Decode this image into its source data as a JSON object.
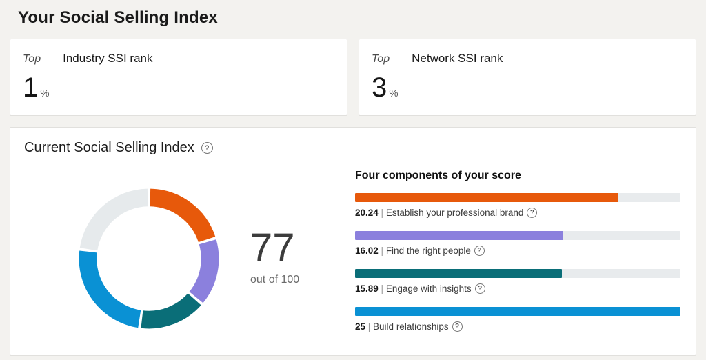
{
  "page": {
    "title": "Your Social Selling Index",
    "background": "#f3f2ef"
  },
  "icons": {
    "help_glyph": "?"
  },
  "separator": " | ",
  "rank_cards": [
    {
      "prefix": "Top",
      "label": "Industry SSI rank",
      "value": "1",
      "unit": "%"
    },
    {
      "prefix": "Top",
      "label": "Network SSI rank",
      "value": "3",
      "unit": "%"
    }
  ],
  "current_index": {
    "title": "Current Social Selling Index",
    "score": "77",
    "score_caption": "out of 100",
    "components_title": "Four components of your score",
    "max_per_component": 25,
    "track_color": "#e8ebed",
    "components": [
      {
        "value": "20.24",
        "label": "Establish your professional brand",
        "color": "#e7590b"
      },
      {
        "value": "16.02",
        "label": "Find the right people",
        "color": "#8b80dd"
      },
      {
        "value": "15.89",
        "label": "Engage with insights",
        "color": "#0a6e78"
      },
      {
        "value": "25",
        "label": "Build relationships",
        "color": "#0a91d4"
      }
    ]
  },
  "chart_data": [
    {
      "type": "pie",
      "subtype": "donut",
      "title": "Current Social Selling Index",
      "center_value": 77,
      "center_max": 100,
      "segments": [
        {
          "label": "Establish your professional brand",
          "value": 20.24,
          "color": "#e7590b"
        },
        {
          "label": "Find the right people",
          "value": 16.02,
          "color": "#8b80dd"
        },
        {
          "label": "Engage with insights",
          "value": 15.89,
          "color": "#0a6e78"
        },
        {
          "label": "Build relationships",
          "value": 25,
          "color": "#0a91d4"
        },
        {
          "label": "Remaining to 100",
          "value": 22.85,
          "color": "#e6eaec"
        }
      ]
    },
    {
      "type": "bar",
      "title": "Four components of your score",
      "categories": [
        "Establish your professional brand",
        "Find the right people",
        "Engage with insights",
        "Build relationships"
      ],
      "values": [
        20.24,
        16.02,
        15.89,
        25
      ],
      "colors": [
        "#e7590b",
        "#8b80dd",
        "#0a6e78",
        "#0a91d4"
      ],
      "xlim": [
        0,
        25
      ],
      "orientation": "horizontal",
      "grid": false,
      "legend": "none"
    }
  ]
}
